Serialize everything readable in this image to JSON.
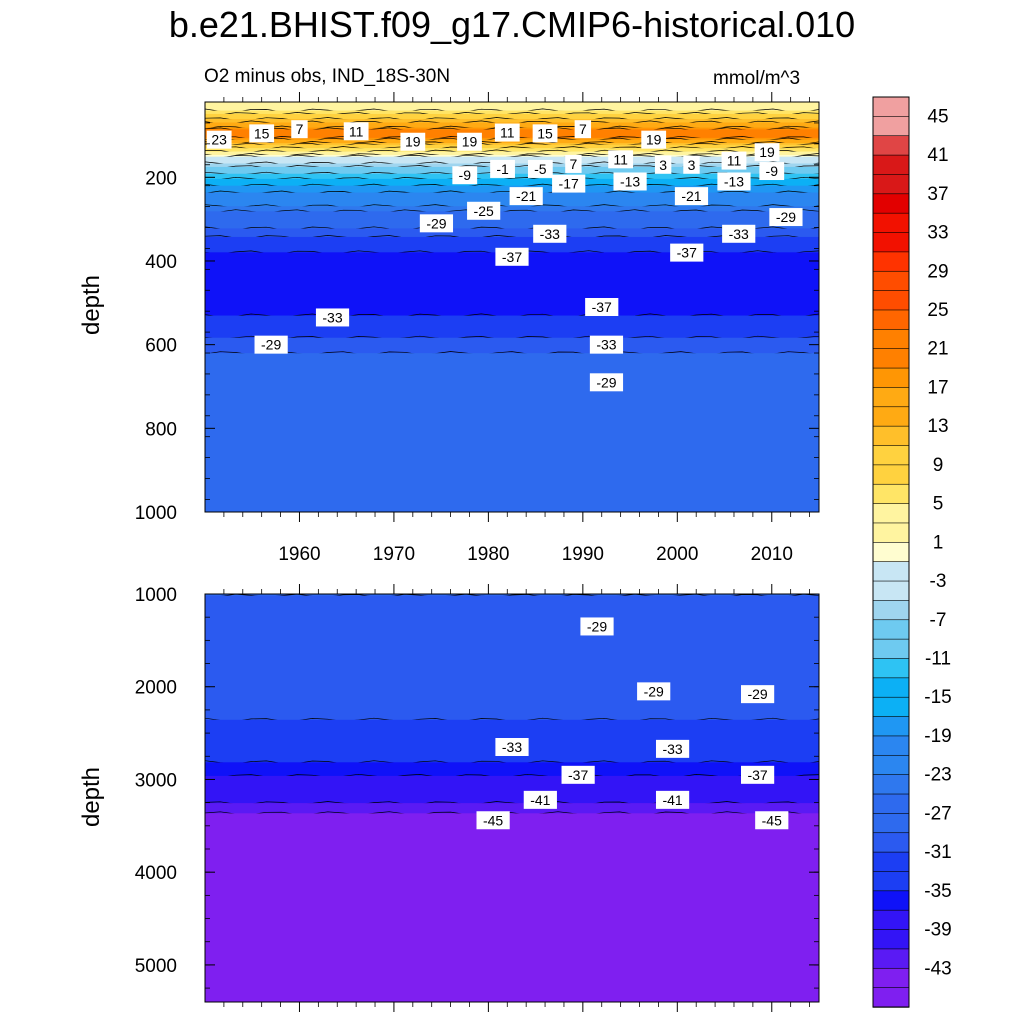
{
  "title": "b.e21.BHIST.f09_g17.CMIP6-historical.010",
  "subtitle": "O2 minus obs, IND_18S-30N",
  "units": "mmol/m^3",
  "colors": {
    "palette": [
      "#7f1ff0",
      "#5a1af4",
      "#3314f6",
      "#0f12f8",
      "#1c3ef3",
      "#2b5af0",
      "#2e6aee",
      "#2f78ee",
      "#2b86f0",
      "#1f97f3",
      "#0cb0f5",
      "#2ec3f3",
      "#6ecaf0",
      "#9fd5ef",
      "#c8e6f4",
      "#fffdd0",
      "#fff4a0",
      "#ffe566",
      "#ffd23f",
      "#ffbf2a",
      "#ffaa13",
      "#ff9604",
      "#ff8000",
      "#ff6600",
      "#ff4d00",
      "#ff3300",
      "#f21100",
      "#e20000",
      "#d91818",
      "#e04545",
      "#f0a0a0"
    ]
  },
  "chart_data": [
    {
      "type": "heatmap",
      "panel": "top",
      "ylabel": "depth",
      "xlim": [
        1950,
        2015
      ],
      "ylim": [
        1000,
        20
      ],
      "x_ticks": [
        1960,
        1970,
        1980,
        1990,
        2000,
        2010
      ],
      "y_ticks": [
        200,
        400,
        600,
        800,
        1000
      ],
      "profile": [
        [
          20,
          1
        ],
        [
          30,
          3
        ],
        [
          45,
          7
        ],
        [
          60,
          11
        ],
        [
          72,
          15
        ],
        [
          85,
          19
        ],
        [
          100,
          21
        ],
        [
          120,
          11
        ],
        [
          135,
          5
        ],
        [
          150,
          -1
        ],
        [
          165,
          -5
        ],
        [
          180,
          -9
        ],
        [
          200,
          -13
        ],
        [
          220,
          -17
        ],
        [
          250,
          -21
        ],
        [
          280,
          -25
        ],
        [
          320,
          -29
        ],
        [
          360,
          -33
        ],
        [
          395,
          -37
        ],
        [
          520,
          -37
        ],
        [
          540,
          -33
        ],
        [
          620,
          -29
        ],
        [
          760,
          -27
        ],
        [
          900,
          -27
        ],
        [
          1000,
          -27
        ]
      ],
      "contour_labels": [
        {
          "x": 1951.5,
          "y": 110,
          "text": "23"
        },
        {
          "x": 1956.0,
          "y": 95,
          "text": "15"
        },
        {
          "x": 1960.0,
          "y": 85,
          "text": "7"
        },
        {
          "x": 1966.0,
          "y": 90,
          "text": "11"
        },
        {
          "x": 1972.0,
          "y": 115,
          "text": "19"
        },
        {
          "x": 1978.0,
          "y": 115,
          "text": "19"
        },
        {
          "x": 1982.0,
          "y": 93,
          "text": "11"
        },
        {
          "x": 1986.0,
          "y": 95,
          "text": "15"
        },
        {
          "x": 1990.0,
          "y": 85,
          "text": "7"
        },
        {
          "x": 1997.5,
          "y": 110,
          "text": "19"
        },
        {
          "x": 2009.5,
          "y": 140,
          "text": "19"
        },
        {
          "x": 2006.0,
          "y": 160,
          "text": "11"
        },
        {
          "x": 1994.0,
          "y": 157,
          "text": "11"
        },
        {
          "x": 1989.0,
          "y": 168,
          "text": "7"
        },
        {
          "x": 1998.5,
          "y": 170,
          "text": "3"
        },
        {
          "x": 2001.5,
          "y": 170,
          "text": "3"
        },
        {
          "x": 1981.5,
          "y": 180,
          "text": "-1"
        },
        {
          "x": 1985.5,
          "y": 180,
          "text": "-5"
        },
        {
          "x": 1977.5,
          "y": 195,
          "text": "-9"
        },
        {
          "x": 2010.0,
          "y": 185,
          "text": "-9"
        },
        {
          "x": 1988.5,
          "y": 215,
          "text": "-17"
        },
        {
          "x": 1995.0,
          "y": 210,
          "text": "-13"
        },
        {
          "x": 2006.0,
          "y": 210,
          "text": "-13"
        },
        {
          "x": 1984.0,
          "y": 245,
          "text": "-21"
        },
        {
          "x": 2001.5,
          "y": 245,
          "text": "-21"
        },
        {
          "x": 1979.5,
          "y": 280,
          "text": "-25"
        },
        {
          "x": 1974.5,
          "y": 310,
          "text": "-29"
        },
        {
          "x": 2011.5,
          "y": 295,
          "text": "-29"
        },
        {
          "x": 1986.5,
          "y": 335,
          "text": "-33"
        },
        {
          "x": 2006.5,
          "y": 335,
          "text": "-33"
        },
        {
          "x": 1982.5,
          "y": 390,
          "text": "-37"
        },
        {
          "x": 2001.0,
          "y": 380,
          "text": "-37"
        },
        {
          "x": 1963.5,
          "y": 535,
          "text": "-33"
        },
        {
          "x": 1992.0,
          "y": 510,
          "text": "-37"
        },
        {
          "x": 1957.0,
          "y": 600,
          "text": "-29"
        },
        {
          "x": 1992.5,
          "y": 600,
          "text": "-33"
        },
        {
          "x": 1992.5,
          "y": 690,
          "text": "-29"
        }
      ]
    },
    {
      "type": "heatmap",
      "panel": "bottom",
      "ylabel": "depth",
      "xlim": [
        1950,
        2015
      ],
      "ylim": [
        5400,
        1000
      ],
      "y_ticks": [
        1000,
        2000,
        3000,
        4000,
        5000
      ],
      "profile": [
        [
          1000,
          -29
        ],
        [
          2350,
          -31
        ],
        [
          2600,
          -33
        ],
        [
          2800,
          -35
        ],
        [
          2950,
          -37
        ],
        [
          3100,
          -39
        ],
        [
          3250,
          -41
        ],
        [
          3350,
          -43
        ],
        [
          3450,
          -45
        ],
        [
          5400,
          -45
        ]
      ],
      "contour_labels": [
        {
          "x": 1991.5,
          "y": 1350,
          "text": "-29"
        },
        {
          "x": 1997.5,
          "y": 2050,
          "text": "-29"
        },
        {
          "x": 2008.5,
          "y": 2080,
          "text": "-29"
        },
        {
          "x": 1982.5,
          "y": 2650,
          "text": "-33"
        },
        {
          "x": 1999.5,
          "y": 2670,
          "text": "-33"
        },
        {
          "x": 1989.5,
          "y": 2950,
          "text": "-37"
        },
        {
          "x": 2008.5,
          "y": 2950,
          "text": "-37"
        },
        {
          "x": 1985.5,
          "y": 3220,
          "text": "-41"
        },
        {
          "x": 1999.5,
          "y": 3220,
          "text": "-41"
        },
        {
          "x": 1980.5,
          "y": 3440,
          "text": "-45"
        },
        {
          "x": 2010.0,
          "y": 3440,
          "text": "-45"
        }
      ]
    },
    {
      "type": "colorbar",
      "levels": [
        -47,
        -45,
        -43,
        -41,
        -39,
        -37,
        -35,
        -33,
        -31,
        -29,
        -27,
        -25,
        -23,
        -21,
        -19,
        -17,
        -15,
        -13,
        -11,
        -9,
        -7,
        -5,
        -3,
        -1,
        1,
        3,
        5,
        7,
        9,
        11,
        13,
        15,
        17,
        19,
        21,
        23,
        25,
        27,
        29,
        31,
        33,
        35,
        37,
        39,
        41,
        43,
        45,
        47
      ],
      "tick_labels": [
        "45",
        "41",
        "37",
        "33",
        "29",
        "25",
        "21",
        "17",
        "13",
        "9",
        "5",
        "1",
        "-3",
        "-7",
        "-11",
        "-15",
        "-19",
        "-23",
        "-27",
        "-31",
        "-35",
        "-39",
        "-43"
      ]
    }
  ]
}
